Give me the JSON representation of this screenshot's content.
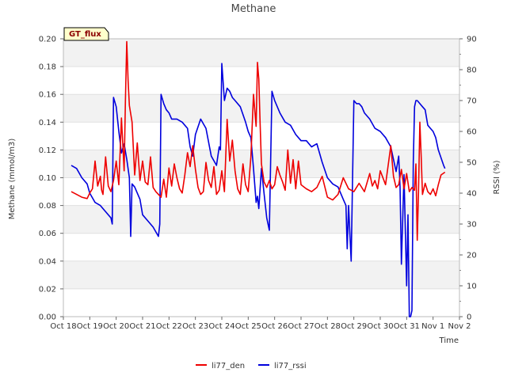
{
  "chart_data": {
    "type": "line",
    "title": "Methane",
    "badge": "GT_flux",
    "xlabel": "Time",
    "ylabel_left": "Methane (mmol/m3)",
    "ylabel_right": "RSSI (%)",
    "x_ticks": [
      "Oct 18",
      "Oct 19",
      "Oct 20",
      "Oct 21",
      "Oct 22",
      "Oct 23",
      "Oct 24",
      "Oct 25",
      "Oct 26",
      "Oct 27",
      "Oct 28",
      "Oct 29",
      "Oct 30",
      "Oct 31",
      "Nov 1",
      "Nov 2"
    ],
    "xlim": [
      0,
      15
    ],
    "ylim_left": [
      0,
      0.2
    ],
    "ylim_right": [
      0,
      90
    ],
    "y_ticks_left": [
      "0.00",
      "0.02",
      "0.04",
      "0.06",
      "0.08",
      "0.10",
      "0.12",
      "0.14",
      "0.16",
      "0.18",
      "0.20"
    ],
    "y_ticks_right": [
      "0",
      "10",
      "20",
      "30",
      "40",
      "50",
      "60",
      "70",
      "80",
      "90"
    ],
    "colors": {
      "li77_den": "#ee0000",
      "li77_rssi": "#0000dd",
      "band": "#f2f2f2",
      "badge_bg": "#ffffcc"
    },
    "series": [
      {
        "name": "li77_den",
        "axis": "left",
        "x": [
          0.3,
          0.5,
          0.7,
          0.9,
          1.0,
          1.1,
          1.2,
          1.3,
          1.4,
          1.45,
          1.5,
          1.6,
          1.7,
          1.8,
          1.9,
          2.0,
          2.1,
          2.2,
          2.3,
          2.35,
          2.4,
          2.45,
          2.5,
          2.6,
          2.7,
          2.8,
          2.9,
          3.0,
          3.1,
          3.2,
          3.3,
          3.4,
          3.5,
          3.6,
          3.7,
          3.8,
          3.9,
          4.0,
          4.1,
          4.2,
          4.3,
          4.4,
          4.5,
          4.6,
          4.7,
          4.8,
          4.9,
          5.0,
          5.1,
          5.2,
          5.3,
          5.4,
          5.5,
          5.6,
          5.7,
          5.8,
          5.9,
          6.0,
          6.1,
          6.2,
          6.3,
          6.4,
          6.5,
          6.6,
          6.7,
          6.8,
          6.9,
          7.0,
          7.1,
          7.2,
          7.3,
          7.35,
          7.4,
          7.45,
          7.5,
          7.6,
          7.7,
          7.8,
          7.9,
          8.0,
          8.1,
          8.2,
          8.3,
          8.4,
          8.5,
          8.6,
          8.7,
          8.8,
          8.9,
          9.0,
          9.2,
          9.4,
          9.6,
          9.8,
          10.0,
          10.2,
          10.4,
          10.6,
          10.8,
          11.0,
          11.2,
          11.4,
          11.6,
          11.7,
          11.8,
          11.9,
          12.0,
          12.2,
          12.4,
          12.5,
          12.6,
          12.7,
          12.8,
          12.9,
          13.0,
          13.1,
          13.2,
          13.3,
          13.35,
          13.4,
          13.45,
          13.5,
          13.55,
          13.6,
          13.7,
          13.8,
          13.9,
          14.0,
          14.1,
          14.2,
          14.3,
          14.45
        ],
        "values": [
          0.09,
          0.088,
          0.086,
          0.085,
          0.089,
          0.092,
          0.112,
          0.094,
          0.101,
          0.091,
          0.088,
          0.115,
          0.094,
          0.09,
          0.098,
          0.112,
          0.095,
          0.143,
          0.105,
          0.155,
          0.198,
          0.17,
          0.152,
          0.14,
          0.102,
          0.125,
          0.098,
          0.112,
          0.097,
          0.095,
          0.115,
          0.093,
          0.09,
          0.088,
          0.086,
          0.099,
          0.086,
          0.107,
          0.094,
          0.11,
          0.1,
          0.092,
          0.089,
          0.102,
          0.118,
          0.108,
          0.123,
          0.106,
          0.093,
          0.088,
          0.09,
          0.111,
          0.098,
          0.093,
          0.108,
          0.088,
          0.091,
          0.105,
          0.09,
          0.142,
          0.112,
          0.127,
          0.105,
          0.092,
          0.088,
          0.11,
          0.095,
          0.09,
          0.115,
          0.16,
          0.137,
          0.183,
          0.171,
          0.14,
          0.11,
          0.097,
          0.093,
          0.098,
          0.092,
          0.095,
          0.108,
          0.102,
          0.097,
          0.091,
          0.12,
          0.096,
          0.113,
          0.092,
          0.112,
          0.095,
          0.092,
          0.09,
          0.093,
          0.101,
          0.086,
          0.084,
          0.088,
          0.1,
          0.092,
          0.09,
          0.096,
          0.09,
          0.103,
          0.094,
          0.098,
          0.092,
          0.105,
          0.095,
          0.123,
          0.101,
          0.093,
          0.095,
          0.106,
          0.092,
          0.103,
          0.09,
          0.093,
          0.091,
          0.11,
          0.055,
          0.09,
          0.14,
          0.115,
          0.088,
          0.096,
          0.09,
          0.088,
          0.092,
          0.087,
          0.095,
          0.102,
          0.104
        ]
      },
      {
        "name": "li77_rssi",
        "axis": "right",
        "x": [
          0.3,
          0.5,
          0.7,
          0.9,
          1.0,
          1.2,
          1.4,
          1.6,
          1.8,
          1.85,
          1.9,
          2.0,
          2.1,
          2.2,
          2.3,
          2.4,
          2.5,
          2.55,
          2.6,
          2.7,
          2.9,
          3.0,
          3.2,
          3.4,
          3.6,
          3.65,
          3.7,
          3.8,
          3.9,
          4.0,
          4.1,
          4.3,
          4.5,
          4.6,
          4.7,
          4.8,
          4.9,
          5.0,
          5.2,
          5.4,
          5.6,
          5.8,
          5.9,
          5.95,
          6.0,
          6.1,
          6.2,
          6.3,
          6.4,
          6.5,
          6.7,
          6.9,
          7.0,
          7.1,
          7.2,
          7.3,
          7.35,
          7.4,
          7.5,
          7.6,
          7.7,
          7.8,
          7.9,
          8.0,
          8.2,
          8.4,
          8.6,
          8.8,
          9.0,
          9.2,
          9.4,
          9.6,
          9.8,
          10.0,
          10.2,
          10.4,
          10.6,
          10.7,
          10.75,
          10.8,
          10.9,
          11.0,
          11.1,
          11.2,
          11.3,
          11.4,
          11.6,
          11.8,
          12.0,
          12.2,
          12.4,
          12.6,
          12.7,
          12.75,
          12.8,
          12.9,
          13.0,
          13.05,
          13.1,
          13.15,
          13.2,
          13.25,
          13.3,
          13.35,
          13.4,
          13.5,
          13.6,
          13.7,
          13.8,
          13.9,
          14.0,
          14.1,
          14.2,
          14.4,
          14.45
        ],
        "values": [
          49,
          48,
          45,
          43,
          40,
          37,
          36,
          34,
          32,
          30,
          71,
          68,
          60,
          53,
          56,
          51,
          45,
          26,
          43,
          42,
          38,
          33,
          31,
          29,
          26,
          30,
          72,
          69,
          67,
          66,
          64,
          64,
          63,
          62,
          61,
          55,
          52,
          59,
          64,
          61,
          52,
          49,
          55,
          54,
          82,
          70,
          74,
          73,
          71,
          70,
          68,
          63,
          60,
          58,
          48,
          37,
          39,
          35,
          48,
          40,
          32,
          28,
          73,
          70,
          66,
          63,
          62,
          59,
          57,
          57,
          55,
          56,
          50,
          45,
          43,
          42,
          38,
          36,
          22,
          36,
          18,
          70,
          69,
          69,
          68,
          66,
          64,
          61,
          60,
          58,
          55,
          47,
          52,
          42,
          17,
          46,
          10,
          33,
          0,
          0,
          2,
          50,
          68,
          70,
          70,
          69,
          68,
          67,
          62,
          61,
          60,
          58,
          54,
          49,
          48
        ]
      }
    ]
  }
}
